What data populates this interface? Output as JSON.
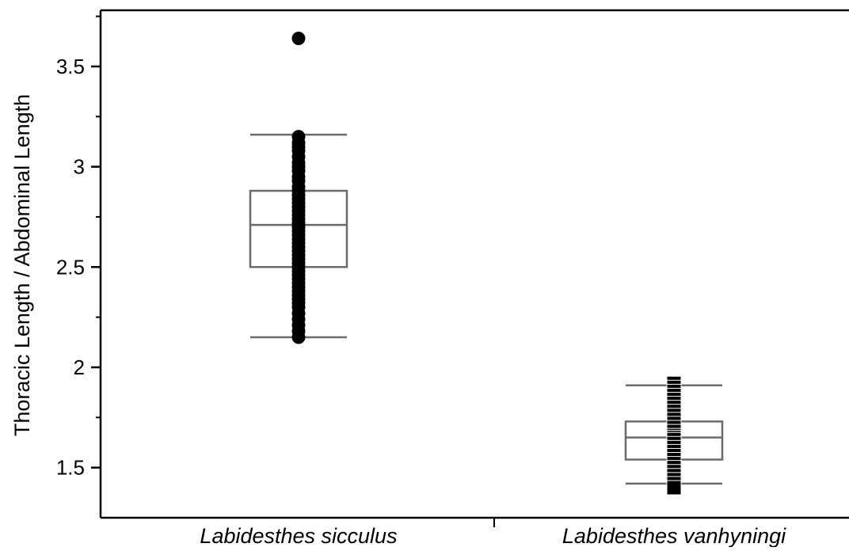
{
  "chart_data": {
    "type": "box",
    "ylabel": "Thoracic Length / Abdominal Length",
    "xlabel": "",
    "ylim": [
      1.25,
      3.78
    ],
    "yticks": [
      1.5,
      2,
      2.5,
      3,
      3.5
    ],
    "ytick_labels": [
      "1.5",
      "2",
      "2.5",
      "3",
      "3.5"
    ],
    "categories": [
      "Labidesthes sicculus",
      "Labidesthes vanhyningi"
    ],
    "grid": false,
    "legend": "none",
    "colors": {
      "box": "#6b6b6b",
      "points": "#000000",
      "axis": "#000000"
    },
    "groups": [
      {
        "category": "Labidesthes sicculus",
        "whisker_low": 2.15,
        "q1": 2.5,
        "median": 2.71,
        "q3": 2.88,
        "whisker_high": 3.16,
        "marker": "circle",
        "points": [
          3.64,
          3.15,
          3.12,
          3.1,
          3.08,
          3.05,
          3.02,
          3.0,
          2.98,
          2.95,
          2.93,
          2.9,
          2.88,
          2.86,
          2.84,
          2.82,
          2.8,
          2.78,
          2.76,
          2.74,
          2.72,
          2.71,
          2.7,
          2.68,
          2.66,
          2.64,
          2.62,
          2.6,
          2.58,
          2.56,
          2.54,
          2.52,
          2.5,
          2.48,
          2.46,
          2.44,
          2.42,
          2.4,
          2.38,
          2.36,
          2.34,
          2.32,
          2.3,
          2.27,
          2.24,
          2.21,
          2.18,
          2.15
        ]
      },
      {
        "category": "Labidesthes vanhyningi",
        "whisker_low": 1.42,
        "q1": 1.54,
        "median": 1.65,
        "q3": 1.73,
        "whisker_high": 1.91,
        "marker": "square",
        "points": [
          1.92,
          1.9,
          1.88,
          1.86,
          1.84,
          1.82,
          1.8,
          1.78,
          1.76,
          1.74,
          1.72,
          1.7,
          1.68,
          1.66,
          1.65,
          1.64,
          1.62,
          1.6,
          1.58,
          1.56,
          1.54,
          1.52,
          1.5,
          1.48,
          1.46,
          1.44,
          1.42,
          1.4
        ]
      }
    ]
  }
}
